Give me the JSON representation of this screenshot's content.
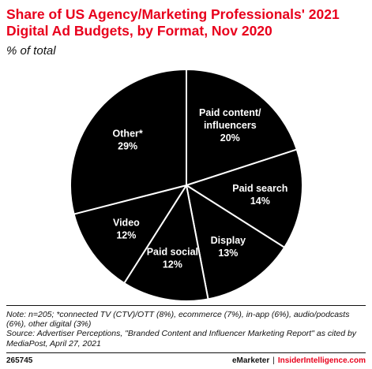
{
  "header": {
    "title": "Share of US Agency/Marketing Professionals' 2021 Digital Ad Budgets, by Format, Nov 2020",
    "subtitle": "% of total"
  },
  "chart_data": {
    "type": "pie",
    "title": "Share of US Agency/Marketing Professionals' 2021 Digital Ad Budgets, by Format, Nov 2020",
    "subtitle": "% of total",
    "slices": [
      {
        "label_lines": [
          "Paid content/",
          "influencers"
        ],
        "value": 20,
        "value_label": "20%"
      },
      {
        "label_lines": [
          "Paid search"
        ],
        "value": 14,
        "value_label": "14%"
      },
      {
        "label_lines": [
          "Display"
        ],
        "value": 13,
        "value_label": "13%"
      },
      {
        "label_lines": [
          "Paid social"
        ],
        "value": 12,
        "value_label": "12%"
      },
      {
        "label_lines": [
          "Video"
        ],
        "value": 12,
        "value_label": "12%"
      },
      {
        "label_lines": [
          "Other*"
        ],
        "value": 29,
        "value_label": "29%"
      }
    ],
    "colors": {
      "slice": "#000000",
      "divider": "#ffffff",
      "text": "#ffffff"
    }
  },
  "footer": {
    "note": "Note: n=205; *connected TV (CTV)/OTT (8%), ecommerce (7%), in-app (6%), audio/podcasts (6%), other digital (3%)",
    "source": "Source: Advertiser Perceptions, \"Branded Content and Influencer Marketing Report\" as cited by MediaPost, April 27, 2021",
    "chart_id": "265745",
    "brand_emarketer": "eMarketer",
    "brand_separator": "|",
    "brand_insider": "InsiderIntelligence.com"
  },
  "colors": {
    "accent": "#e8001c",
    "text": "#111111"
  }
}
